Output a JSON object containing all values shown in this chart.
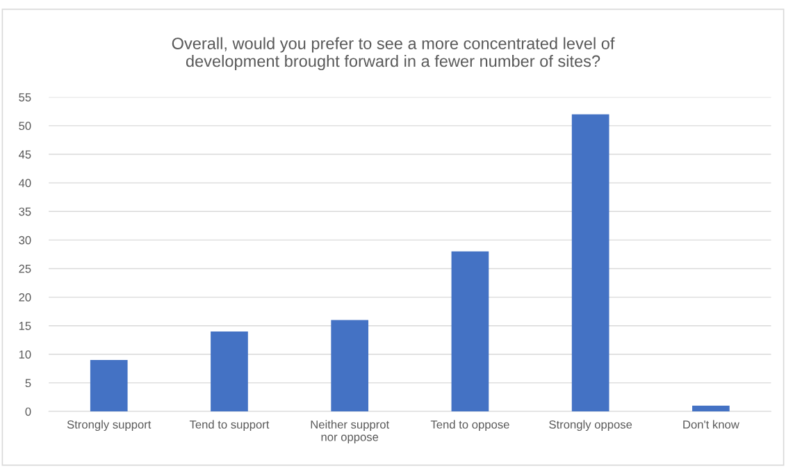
{
  "chart_data": {
    "type": "bar",
    "title": "Overall, would you prefer to see a more concentrated level of\ndevelopment brought forward in a fewer number of sites?",
    "categories": [
      "Strongly support",
      "Tend to support",
      "Neither supprot\nnor oppose",
      "Tend to oppose",
      "Strongly oppose",
      "Don't know"
    ],
    "values": [
      9,
      14,
      16,
      28,
      52,
      1
    ],
    "color": "#4472c4",
    "ylim": [
      0,
      55
    ],
    "yticks": [
      0,
      5,
      10,
      15,
      20,
      25,
      30,
      35,
      40,
      45,
      50,
      55
    ],
    "grid": "y",
    "legend": false
  }
}
